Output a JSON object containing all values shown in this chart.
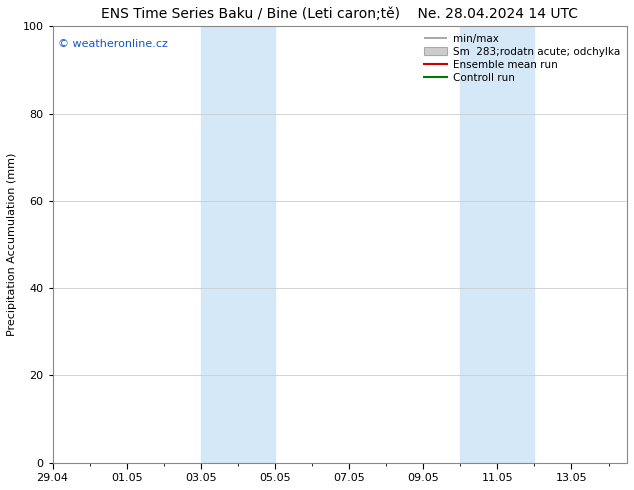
{
  "title": "ENS Time Series Baku / Bine (Leti caron;tě)    Ne. 28.04.2024 14 UTC",
  "ylabel": "Precipitation Accumulation (mm)",
  "ylim": [
    0,
    100
  ],
  "yticks": [
    0,
    20,
    40,
    60,
    80,
    100
  ],
  "background_color": "#ffffff",
  "plot_bg_color": "#ffffff",
  "shading_color": "#d4e8f7",
  "watermark": "© weatheronline.cz",
  "watermark_color": "#1155cc",
  "legend_labels": [
    "min/max",
    "Sm  283;rodatn acute; odchylka",
    "Ensemble mean run",
    "Controll run"
  ],
  "legend_colors_line": [
    "#999999",
    "#bbbbbb",
    "#cc0000",
    "#007700"
  ],
  "xtick_labels": [
    "29.04",
    "01.05",
    "03.05",
    "05.05",
    "07.05",
    "09.05",
    "11.05",
    "13.05"
  ],
  "xtick_positions": [
    0,
    2,
    4,
    6,
    8,
    10,
    12,
    14
  ],
  "xlim": [
    0,
    15.5
  ],
  "shading_bands": [
    [
      4.0,
      5.0
    ],
    [
      5.0,
      6.0
    ],
    [
      11.0,
      12.0
    ],
    [
      12.0,
      13.0
    ]
  ],
  "title_fontsize": 10,
  "ylabel_fontsize": 8,
  "tick_fontsize": 8,
  "legend_fontsize": 7.5,
  "grid_color": "#cccccc",
  "spine_color": "#888888"
}
